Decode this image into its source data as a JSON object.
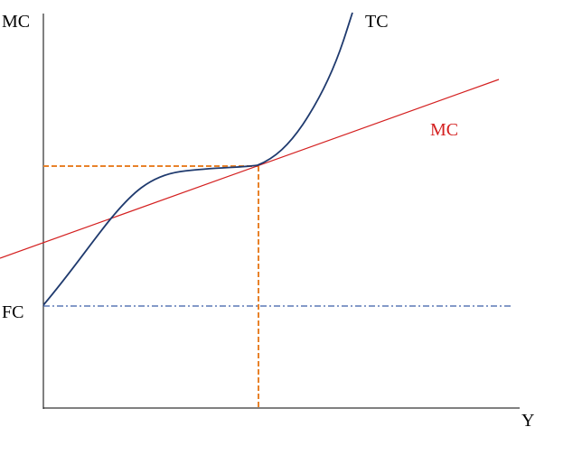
{
  "axes": {
    "y_label": "MC",
    "x_label": "Y"
  },
  "curves": {
    "tc_label": "TC",
    "mc_label": "MC",
    "fc_label": "FC"
  }
}
